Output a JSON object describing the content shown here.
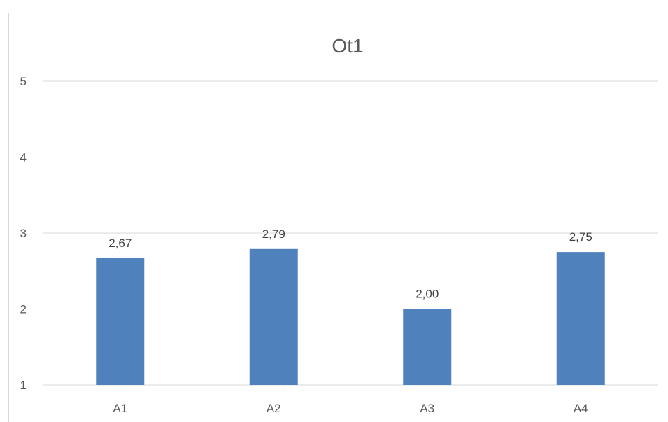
{
  "chart_data": {
    "type": "bar",
    "title": "Ot1",
    "xlabel": "",
    "ylabel": "",
    "categories": [
      "A1",
      "A2",
      "A3",
      "A4"
    ],
    "values": [
      2.67,
      2.79,
      2.0,
      2.75
    ],
    "value_labels": [
      "2,67",
      "2,79",
      "2,00",
      "2,75"
    ],
    "ylim": [
      1,
      5
    ],
    "yticks": [
      1,
      2,
      3,
      4,
      5
    ],
    "ytick_labels": [
      "1",
      "2",
      "3",
      "4",
      "5"
    ],
    "grid": true,
    "legend": "none",
    "bar_color": "#4f81bd",
    "grid_color": "#d9d9d9"
  }
}
